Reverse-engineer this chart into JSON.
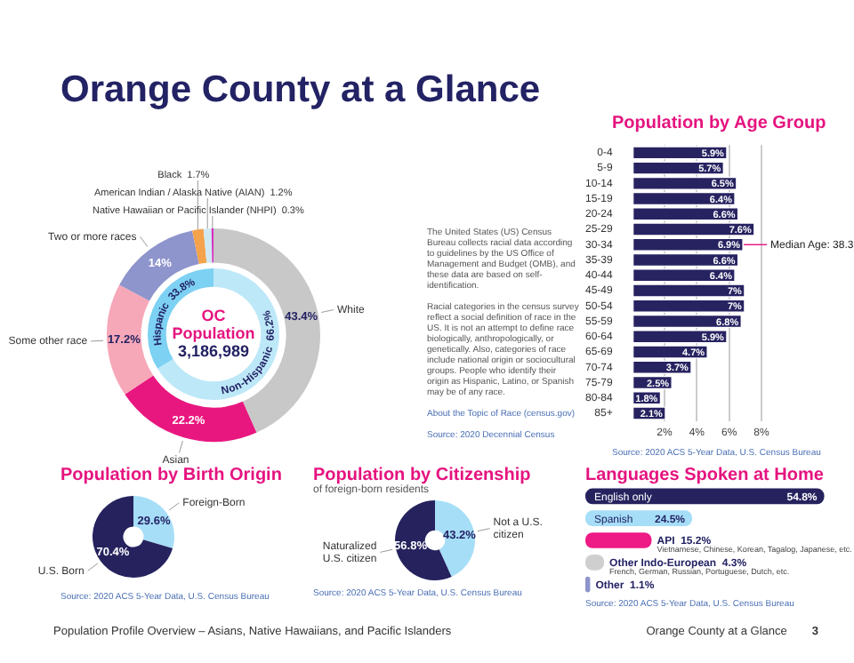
{
  "chart_data": [
    {
      "type": "donut",
      "title": "Orange County at a Glance",
      "categories": [
        "White",
        "Asian",
        "Some other race",
        "Two or more races",
        "Black",
        "American Indian / Alaska Native (AIAN)",
        "Native Hawaiian or Pacific Islander (NHPI)"
      ],
      "values": [
        43.4,
        22.2,
        17.2,
        14,
        1.7,
        1.2,
        0.3
      ],
      "colors": [
        "#c8c8c8",
        "#e8177f",
        "#f6a7b8",
        "#8e94cc",
        "#f4a24c",
        "#cfe9f3",
        "#d62fbf"
      ],
      "value_labels": [
        "43.4%",
        "22.2%",
        "17.2%",
        "14%",
        "1.7%",
        "1.2%",
        "0.3%"
      ]
    },
    {
      "type": "donut",
      "title": "OC Population",
      "categories": [
        "Non-Hispanic",
        "Hispanic"
      ],
      "values": [
        66.2,
        33.8
      ],
      "colors": [
        "#bde8f8",
        "#7dd1f3"
      ],
      "value_labels": [
        "66.2%",
        "33.8%"
      ],
      "annotations": [
        "3,186,989"
      ]
    },
    {
      "type": "other",
      "annotations": [
        "The United States (US) Census Bureau collects racial data according to guidelines by the US Office of Management and Budget (OMB), and these data are based on self-identification.",
        "Racial categories in the census survey reflect a social definition of race in the US. It is not an attempt to define race biologically, anthropologically, or genetically. Also, categories of race include national origin or sociocultural groups. People who identify their origin as Hispanic, Latino, or Spanish may be of any race.",
        "About the Topic of Race (census.gov)",
        "Source: 2020 Decennial Census"
      ]
    },
    {
      "type": "bar",
      "orientation": "horizontal",
      "title": "Population by Age Group",
      "categories": [
        "0-4",
        "5-9",
        "10-14",
        "15-19",
        "20-24",
        "25-29",
        "30-34",
        "35-39",
        "40-44",
        "45-49",
        "50-54",
        "55-59",
        "60-64",
        "65-69",
        "70-74",
        "75-79",
        "80-84",
        "85+"
      ],
      "values": [
        5.9,
        5.7,
        6.5,
        6.4,
        6.6,
        7.6,
        6.9,
        6.6,
        6.4,
        7,
        7,
        6.8,
        5.9,
        4.7,
        3.7,
        2.5,
        1.8,
        2.1
      ],
      "value_labels": [
        "5.9%",
        "5.7%",
        "6.5%",
        "6.4%",
        "6.6%",
        "7.6%",
        "6.9%",
        "6.6%",
        "6.4%",
        "7%",
        "7%",
        "6.8%",
        "5.9%",
        "4.7%",
        "3.7%",
        "2.5%",
        "1.8%",
        "2.1%"
      ],
      "color": "#272361",
      "xlim": [
        0,
        8
      ],
      "xticks": [
        {
          "value": 2,
          "label": "2%"
        },
        {
          "value": 4,
          "label": "4%"
        },
        {
          "value": 6,
          "label": "6%"
        },
        {
          "value": 8,
          "label": "8%"
        }
      ],
      "grid": "x",
      "annotations": [
        {
          "text": "Median Age: 38.3",
          "x": 6.9,
          "y": "30-34"
        },
        "Source: 2020 ACS 5-Year Data, U.S. Census Bureau"
      ]
    },
    {
      "type": "donut",
      "title": "Population by Birth Origin",
      "categories": [
        "Foreign-Born",
        "U.S. Born"
      ],
      "values": [
        29.6,
        70.4
      ],
      "colors": [
        "#a6def7",
        "#25225e"
      ],
      "value_labels": [
        "29.6%",
        "70.4%"
      ],
      "annotations": [
        "Source: 2020 ACS 5-Year Data, U.S. Census Bureau"
      ]
    },
    {
      "type": "donut",
      "title": "Population by Citizenship",
      "subtitle": "of foreign-born residents",
      "categories": [
        "Not a U.S. citizen",
        "Naturalized U.S. citizen"
      ],
      "values": [
        43.2,
        56.8
      ],
      "colors": [
        "#a6def7",
        "#25225e"
      ],
      "value_labels": [
        "43.2%",
        "56.8%"
      ],
      "annotations": [
        "Source: 2020 ACS 5-Year Data, U.S. Census Bureau"
      ]
    },
    {
      "type": "bar",
      "orientation": "horizontal",
      "title": "Languages Spoken at Home",
      "categories": [
        "English only",
        "Spanish",
        "API",
        "Other Indo-European",
        "Other"
      ],
      "values": [
        54.8,
        24.5,
        15.2,
        4.3,
        1.1
      ],
      "colors": [
        "#25225e",
        "#a6def7",
        "#ee1a85",
        "#cfcfcf",
        "#8e94cc"
      ],
      "value_labels": [
        "54.8%",
        "24.5%",
        "15.2%",
        "4.3%",
        "1.1%"
      ],
      "annotations": [
        "Vietnamese, Chinese, Korean, Tagalog, Japanese, etc.",
        "French, German, Russian, Portuguese, Dutch, etc.",
        "Source: 2020 ACS 5-Year Data, U.S. Census Bureau"
      ]
    },
    {
      "type": "other",
      "annotations": [
        "Population Profile Overview – Asians, Native Hawaiians, and Pacific Islanders",
        "Orange County at a Glance",
        "3"
      ]
    }
  ]
}
